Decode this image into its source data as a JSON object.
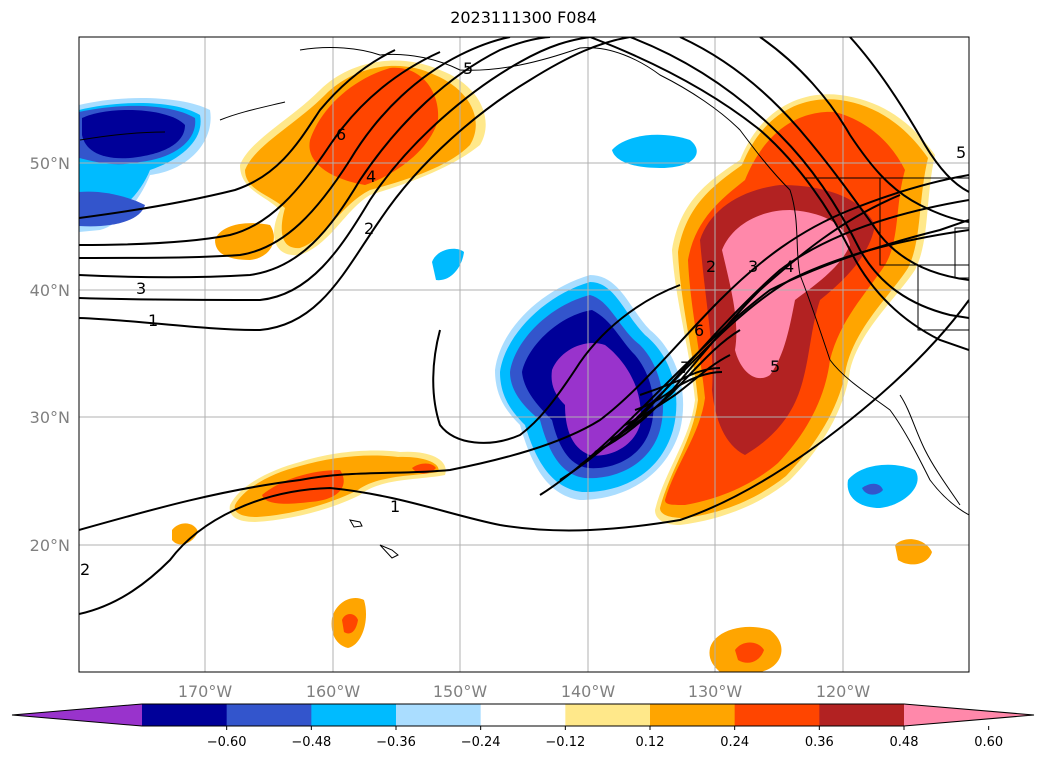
{
  "title": "2023111300 F084",
  "map": {
    "lat_labels": [
      "50°N",
      "40°N",
      "30°N",
      "20°N"
    ],
    "lon_labels": [
      "170°W",
      "160°W",
      "150°W",
      "140°W",
      "130°W",
      "120°W"
    ],
    "contour_labels": [
      "5",
      "6",
      "4",
      "2",
      "3",
      "1",
      "1",
      "2",
      "3",
      "4",
      "6",
      "7",
      "5",
      "5",
      "2"
    ]
  },
  "colorbar": {
    "ticks": [
      "−0.60",
      "−0.48",
      "−0.36",
      "−0.24",
      "−0.12",
      "0.12",
      "0.24",
      "0.36",
      "0.48",
      "0.60"
    ],
    "colors": [
      "#9933cc",
      "#000099",
      "#3355cc",
      "#00bbff",
      "#aaddff",
      "#ffffff",
      "#ffe88a",
      "#ffa500",
      "#ff4500",
      "#b22222",
      "#ff88aa"
    ]
  }
}
